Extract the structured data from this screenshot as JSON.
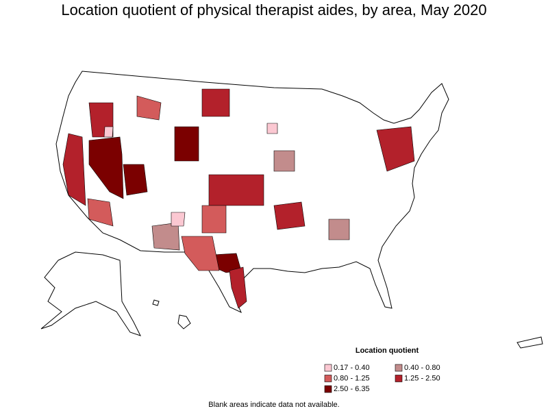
{
  "title": "Location quotient of physical therapist aides, by area, May 2020",
  "legend": {
    "title": "Location quotient",
    "items": [
      {
        "label": "0.17 - 0.40",
        "color": "#fbc8d2"
      },
      {
        "label": "0.40 - 0.80",
        "color": "#c28c8c"
      },
      {
        "label": "0.80 - 1.25",
        "color": "#d35b5b"
      },
      {
        "label": "1.25 - 2.50",
        "color": "#b3212b"
      },
      {
        "label": "2.50 - 6.35",
        "color": "#7b0000"
      }
    ]
  },
  "note": "Blank areas indicate data not available."
}
